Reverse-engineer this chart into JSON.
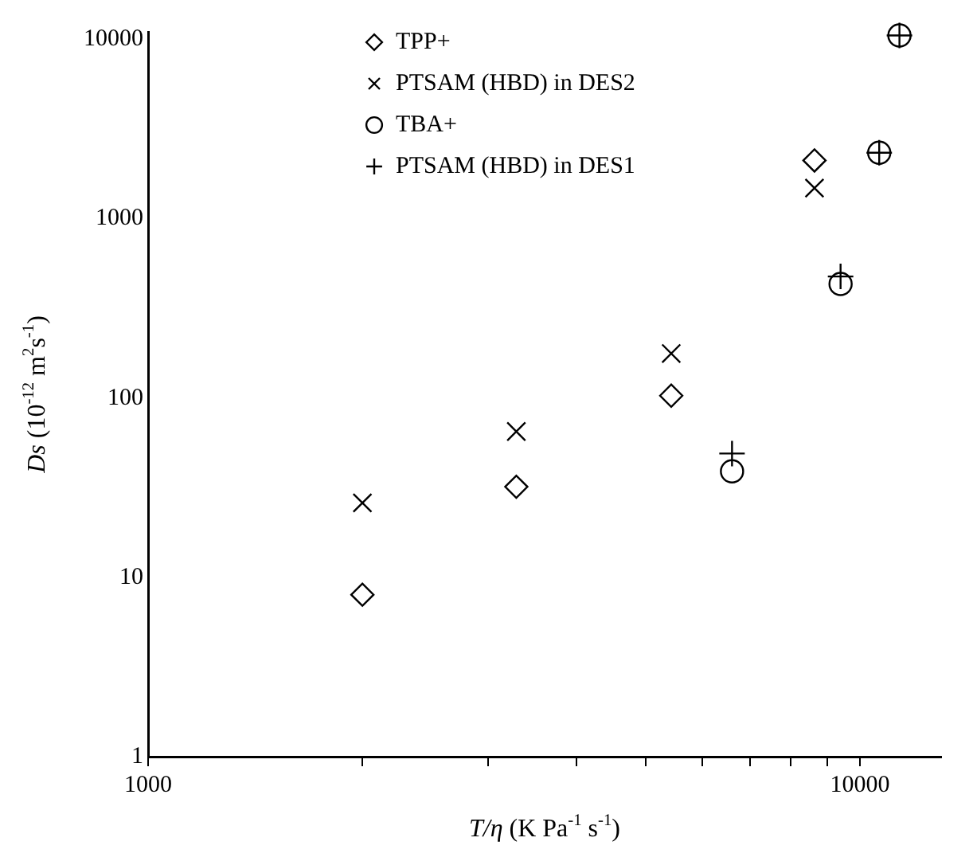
{
  "chart_data": {
    "type": "scatter",
    "xlabel": "T/η (K Pa$^{-1}$ s$^{-1}$)",
    "ylabel": "Ds (10$^{-12}$ m$^{2}$s$^{-1}$)",
    "log": "xy",
    "grid": false,
    "legend": "top left",
    "xlim": [
      1000,
      13000
    ],
    "ylim": [
      1,
      11000
    ],
    "xticks": [
      1000,
      {
        "value": 2000,
        "label": null
      },
      {
        "value": 3000,
        "label": null
      },
      {
        "value": 4000,
        "label": null
      },
      {
        "value": 5000,
        "label": null
      },
      {
        "value": 6000,
        "label": null
      },
      {
        "value": 7000,
        "label": null
      },
      {
        "value": 8000,
        "label": null
      },
      {
        "value": 9000,
        "label": null
      },
      10000
    ],
    "yticks": [
      1,
      10,
      100,
      1000,
      10000
    ],
    "series": [
      {
        "name": "TPP+",
        "color": "#000000",
        "marker": "diamond",
        "x": [
          2000,
          3290,
          5430,
          8630
        ],
        "values": [
          8,
          32,
          103,
          2110
        ]
      },
      {
        "name": "PTSAM (HBD) in DES2",
        "color": "#000000",
        "marker": "cross",
        "x": [
          2000,
          3290,
          5430,
          8630
        ],
        "values": [
          26,
          65,
          177,
          1480
        ]
      },
      {
        "name": "TBA+",
        "color": "#000000",
        "marker": "circle",
        "x": [
          6610,
          9390,
          10640,
          11360
        ],
        "values": [
          39,
          432,
          2330,
          10500
        ]
      },
      {
        "name": "PTSAM (HBD) in DES1",
        "color": "#000000",
        "marker": "plus",
        "x": [
          6610,
          9390,
          10640,
          11360
        ],
        "values": [
          49,
          476,
          2330,
          10500
        ]
      }
    ]
  }
}
